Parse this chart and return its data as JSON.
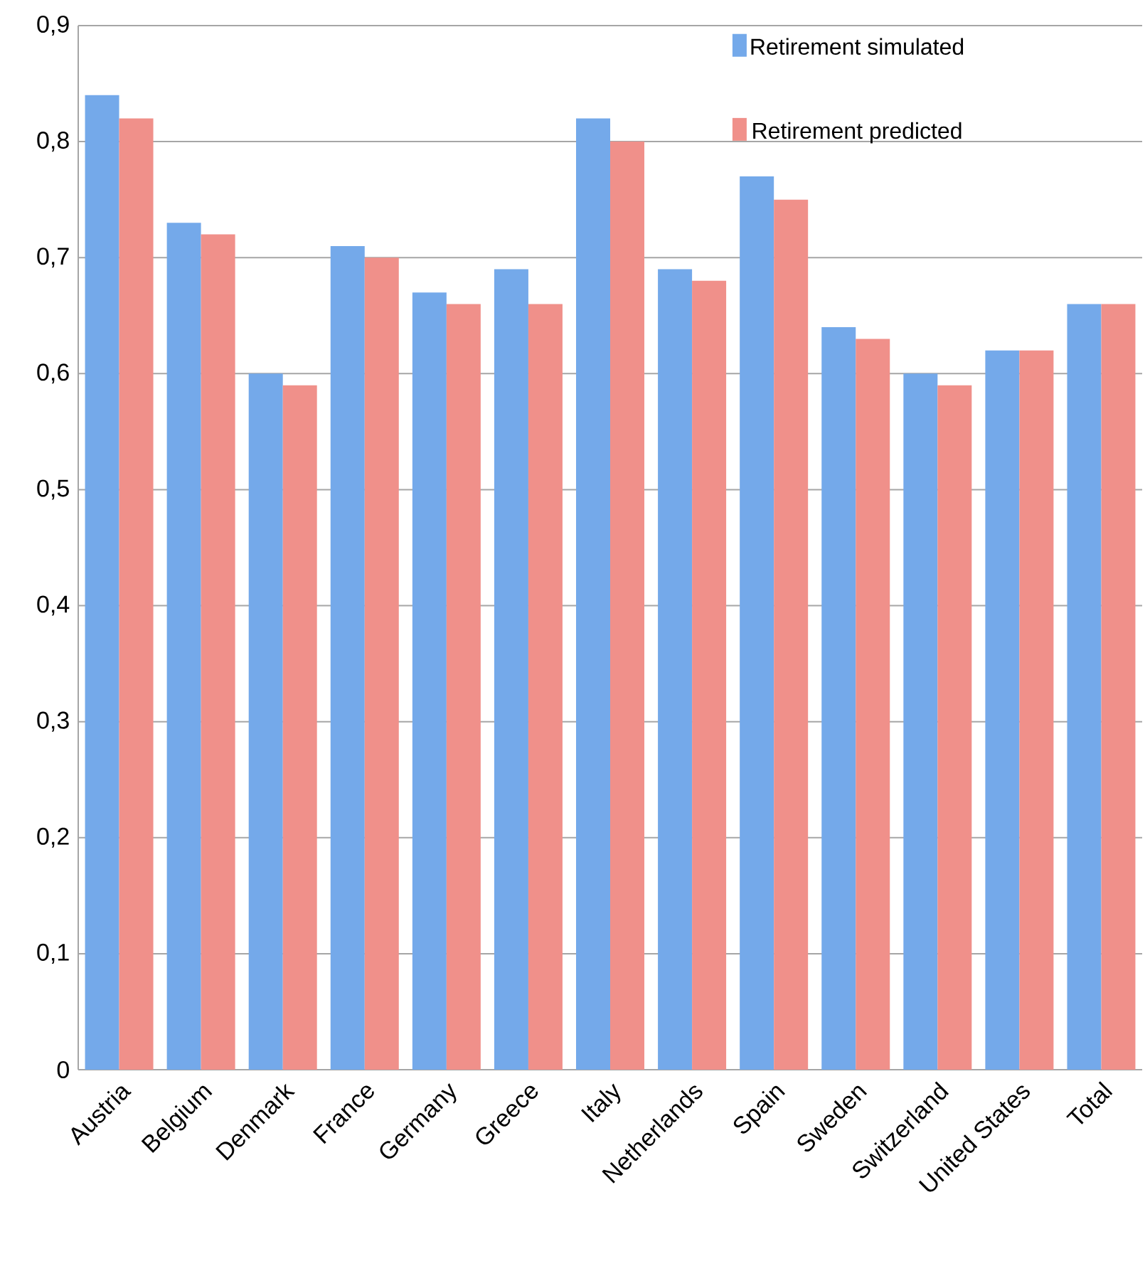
{
  "chart_data": {
    "type": "bar",
    "categories": [
      "Austria",
      "Belgium",
      "Denmark",
      "France",
      "Germany",
      "Greece",
      "Italy",
      "Netherlands",
      "Spain",
      "Sweden",
      "Switzerland",
      "United States",
      "Total"
    ],
    "series": [
      {
        "name": "Retirement simulated",
        "color": "#74a9ea",
        "values": [
          0.84,
          0.73,
          0.6,
          0.71,
          0.67,
          0.69,
          0.82,
          0.69,
          0.77,
          0.64,
          0.6,
          0.62,
          0.66
        ]
      },
      {
        "name": "Retirement predicted",
        "color": "#f0908a",
        "values": [
          0.82,
          0.72,
          0.59,
          0.7,
          0.66,
          0.66,
          0.8,
          0.68,
          0.75,
          0.63,
          0.59,
          0.62,
          0.66
        ]
      }
    ],
    "ylim": [
      0,
      0.9
    ],
    "yticks": [
      {
        "value": 0,
        "label": "0"
      },
      {
        "value": 0.1,
        "label": "0,1"
      },
      {
        "value": 0.2,
        "label": "0,2"
      },
      {
        "value": 0.3,
        "label": "0,3"
      },
      {
        "value": 0.4,
        "label": "0,4"
      },
      {
        "value": 0.5,
        "label": "0,5"
      },
      {
        "value": 0.6,
        "label": "0,6"
      },
      {
        "value": 0.7,
        "label": "0,7"
      },
      {
        "value": 0.8,
        "label": "0,8"
      },
      {
        "value": 0.9,
        "label": "0,9"
      }
    ],
    "grid": "y",
    "legend": "top right"
  }
}
